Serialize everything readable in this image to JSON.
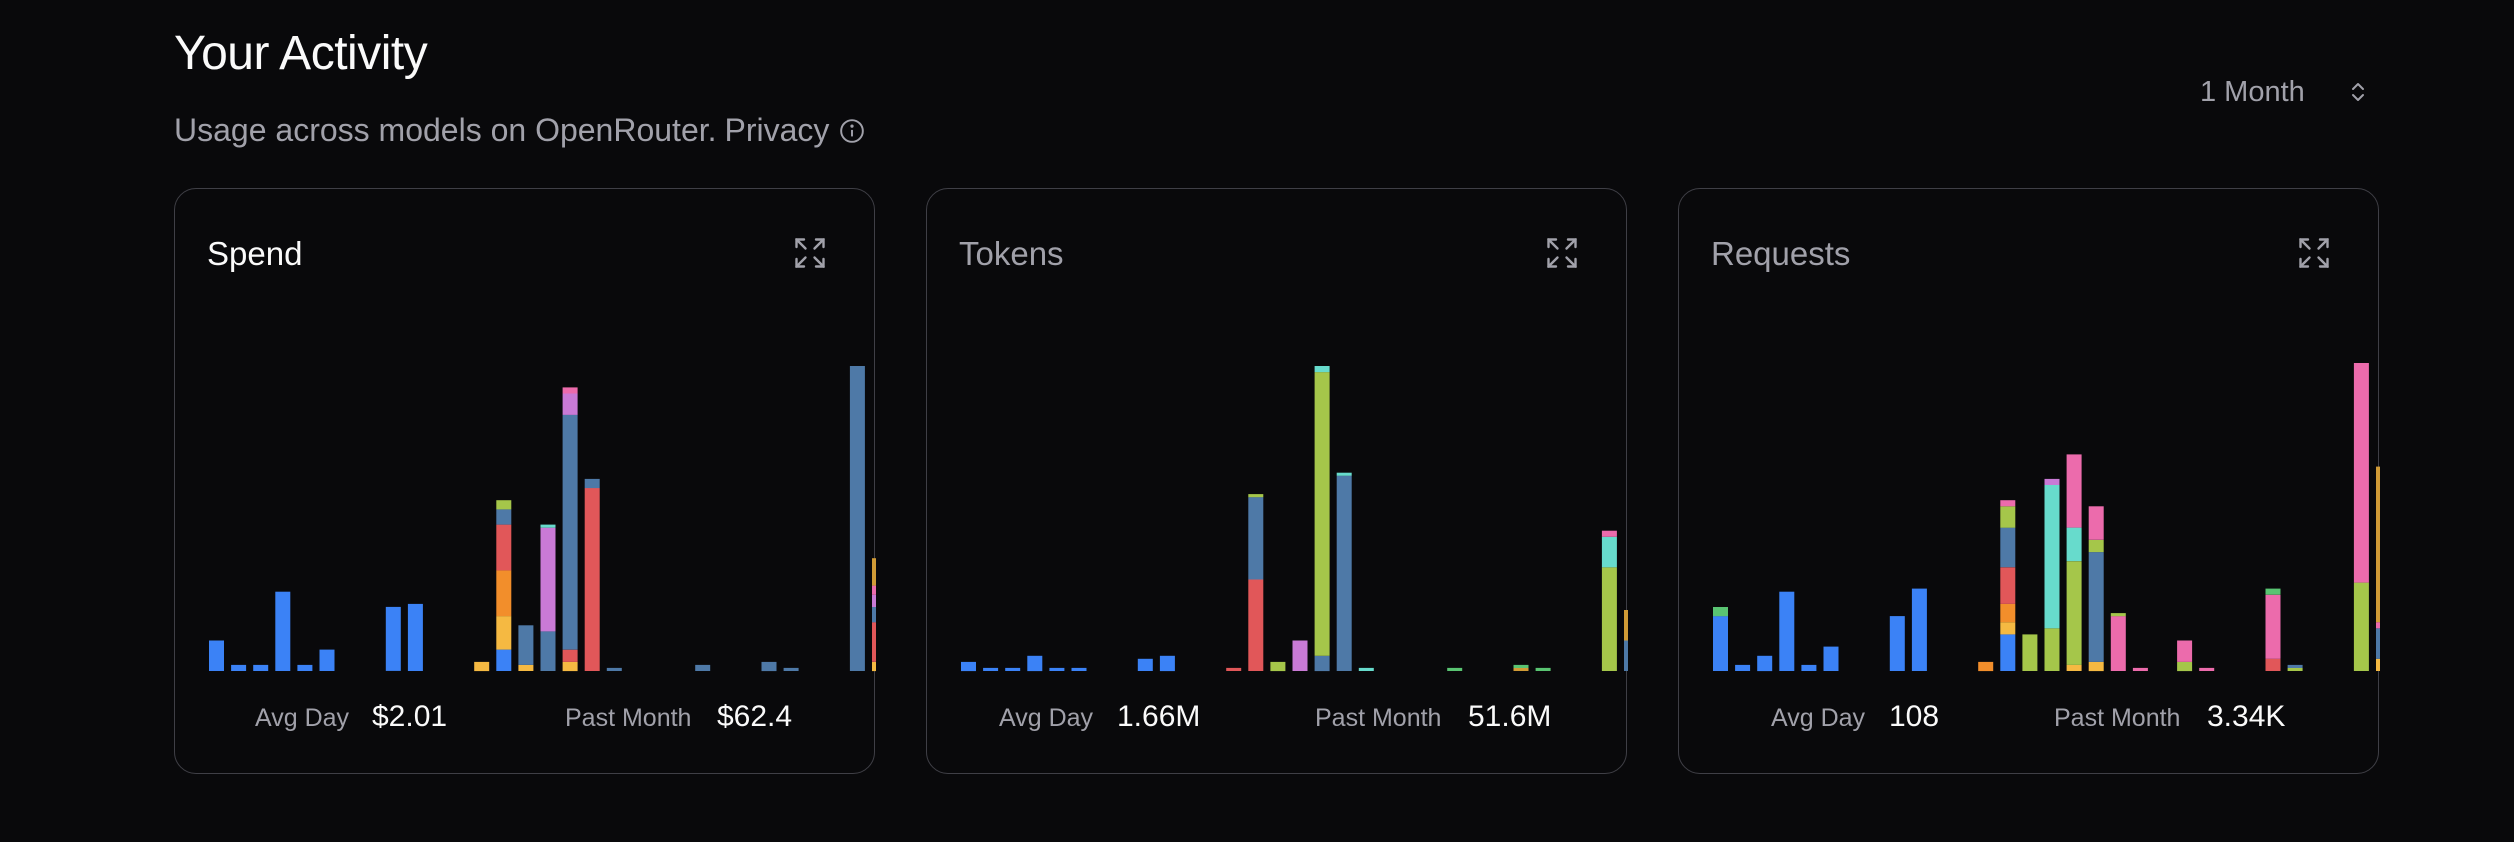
{
  "header": {
    "title": "Your Activity",
    "subtitle": "Usage across models on OpenRouter.",
    "privacy_link": "Privacy",
    "range_select": "1 Month"
  },
  "colors": {
    "blue": "#3b82f6",
    "steel": "#4e79a7",
    "orange": "#e15759",
    "amber": "#f28e2b",
    "yellow": "#f5b942",
    "pink": "#ec6bac",
    "purple": "#c97ad6",
    "lime": "#a5c64a",
    "green": "#59c472",
    "teal": "#67dbcc",
    "gold": "#d19b36"
  },
  "cards": [
    {
      "title": "Spend",
      "avg_label": "Avg Day",
      "avg_value": "$2.01",
      "total_label": "Past Month",
      "total_value": "$62.4",
      "chart_data": {
        "type": "bar",
        "stacked": true,
        "max": 100,
        "values": [
          [
            [
              "blue",
              10
            ]
          ],
          [
            [
              "blue",
              2
            ]
          ],
          [
            [
              "blue",
              2
            ]
          ],
          [
            [
              "blue",
              26
            ]
          ],
          [
            [
              "blue",
              2
            ]
          ],
          [
            [
              "blue",
              7
            ]
          ],
          [],
          [],
          [
            [
              "blue",
              21
            ]
          ],
          [
            [
              "blue",
              22
            ]
          ],
          [],
          [],
          [
            [
              "yellow",
              3
            ]
          ],
          [
            [
              "blue",
              7
            ],
            [
              "yellow",
              11
            ],
            [
              "amber",
              15
            ],
            [
              "orange",
              15
            ],
            [
              "steel",
              5
            ],
            [
              "lime",
              3
            ]
          ],
          [
            [
              "yellow",
              2
            ],
            [
              "steel",
              13
            ]
          ],
          [
            [
              "steel",
              13
            ],
            [
              "purple",
              34
            ],
            [
              "teal",
              1
            ]
          ],
          [
            [
              "yellow",
              3
            ],
            [
              "orange",
              4
            ],
            [
              "steel",
              77
            ],
            [
              "purple",
              7
            ],
            [
              "pink",
              2
            ]
          ],
          [
            [
              "orange",
              60
            ],
            [
              "steel",
              3
            ]
          ],
          [
            [
              "steel",
              1
            ]
          ],
          [],
          [],
          [],
          [
            [
              "steel",
              2
            ]
          ],
          [],
          [],
          [
            [
              "steel",
              3
            ]
          ],
          [
            [
              "steel",
              1
            ]
          ],
          [],
          [],
          [
            [
              "steel",
              100
            ]
          ],
          [
            [
              "yellow",
              3
            ],
            [
              "orange",
              13
            ],
            [
              "steel",
              5
            ],
            [
              "purple",
              4
            ],
            [
              "pink",
              3
            ],
            [
              "gold",
              9
            ]
          ]
        ]
      }
    },
    {
      "title": "Tokens",
      "avg_label": "Avg Day",
      "avg_value": "1.66M",
      "total_label": "Past Month",
      "total_value": "51.6M",
      "chart_data": {
        "type": "bar",
        "stacked": true,
        "max": 100,
        "values": [
          [
            [
              "blue",
              3
            ]
          ],
          [
            [
              "blue",
              1
            ]
          ],
          [
            [
              "blue",
              1
            ]
          ],
          [
            [
              "blue",
              5
            ]
          ],
          [
            [
              "blue",
              1
            ]
          ],
          [
            [
              "blue",
              1
            ]
          ],
          [],
          [],
          [
            [
              "blue",
              4
            ]
          ],
          [
            [
              "blue",
              5
            ]
          ],
          [],
          [],
          [
            [
              "orange",
              1
            ]
          ],
          [
            [
              "orange",
              30
            ],
            [
              "steel",
              27
            ],
            [
              "lime",
              1
            ]
          ],
          [
            [
              "lime",
              3
            ]
          ],
          [
            [
              "purple",
              10
            ]
          ],
          [
            [
              "steel",
              5
            ],
            [
              "lime",
              93
            ],
            [
              "teal",
              2
            ]
          ],
          [
            [
              "steel",
              64
            ],
            [
              "teal",
              1
            ]
          ],
          [
            [
              "teal",
              1
            ]
          ],
          [],
          [],
          [],
          [
            [
              "green",
              1
            ]
          ],
          [],
          [],
          [
            [
              "gold",
              1
            ],
            [
              "green",
              1
            ]
          ],
          [
            [
              "green",
              1
            ]
          ],
          [],
          [],
          [
            [
              "lime",
              34
            ],
            [
              "teal",
              10
            ],
            [
              "pink",
              2
            ]
          ],
          [
            [
              "steel",
              10
            ],
            [
              "gold",
              10
            ]
          ]
        ]
      }
    },
    {
      "title": "Requests",
      "avg_label": "Avg Day",
      "avg_value": "108",
      "total_label": "Past Month",
      "total_value": "3.34K",
      "chart_data": {
        "type": "bar",
        "stacked": true,
        "max": 100,
        "values": [
          [
            [
              "blue",
              18
            ],
            [
              "green",
              3
            ]
          ],
          [
            [
              "blue",
              2
            ]
          ],
          [
            [
              "blue",
              5
            ]
          ],
          [
            [
              "blue",
              26
            ]
          ],
          [
            [
              "blue",
              2
            ]
          ],
          [
            [
              "blue",
              8
            ]
          ],
          [],
          [],
          [
            [
              "blue",
              18
            ]
          ],
          [
            [
              "blue",
              27
            ]
          ],
          [],
          [],
          [
            [
              "amber",
              3
            ]
          ],
          [
            [
              "blue",
              12
            ],
            [
              "yellow",
              4
            ],
            [
              "amber",
              6
            ],
            [
              "orange",
              12
            ],
            [
              "steel",
              13
            ],
            [
              "lime",
              7
            ],
            [
              "pink",
              2
            ]
          ],
          [
            [
              "lime",
              12
            ]
          ],
          [
            [
              "lime",
              14
            ],
            [
              "teal",
              47
            ],
            [
              "purple",
              2
            ]
          ],
          [
            [
              "yellow",
              2
            ],
            [
              "lime",
              34
            ],
            [
              "teal",
              11
            ],
            [
              "pink",
              24
            ]
          ],
          [
            [
              "yellow",
              3
            ],
            [
              "steel",
              36
            ],
            [
              "lime",
              4
            ],
            [
              "pink",
              11
            ]
          ],
          [
            [
              "pink",
              18
            ],
            [
              "lime",
              1
            ]
          ],
          [
            [
              "pink",
              1
            ]
          ],
          [],
          [
            [
              "lime",
              3
            ],
            [
              "pink",
              7
            ]
          ],
          [
            [
              "pink",
              1
            ]
          ],
          [],
          [],
          [
            [
              "orange",
              4
            ],
            [
              "pink",
              21
            ],
            [
              "green",
              2
            ]
          ],
          [
            [
              "lime",
              1
            ],
            [
              "steel",
              1
            ]
          ],
          [],
          [],
          [
            [
              "lime",
              29
            ],
            [
              "pink",
              72
            ]
          ],
          [
            [
              "yellow",
              4
            ],
            [
              "steel",
              10
            ],
            [
              "pink",
              2
            ],
            [
              "gold",
              51
            ]
          ]
        ]
      }
    }
  ]
}
